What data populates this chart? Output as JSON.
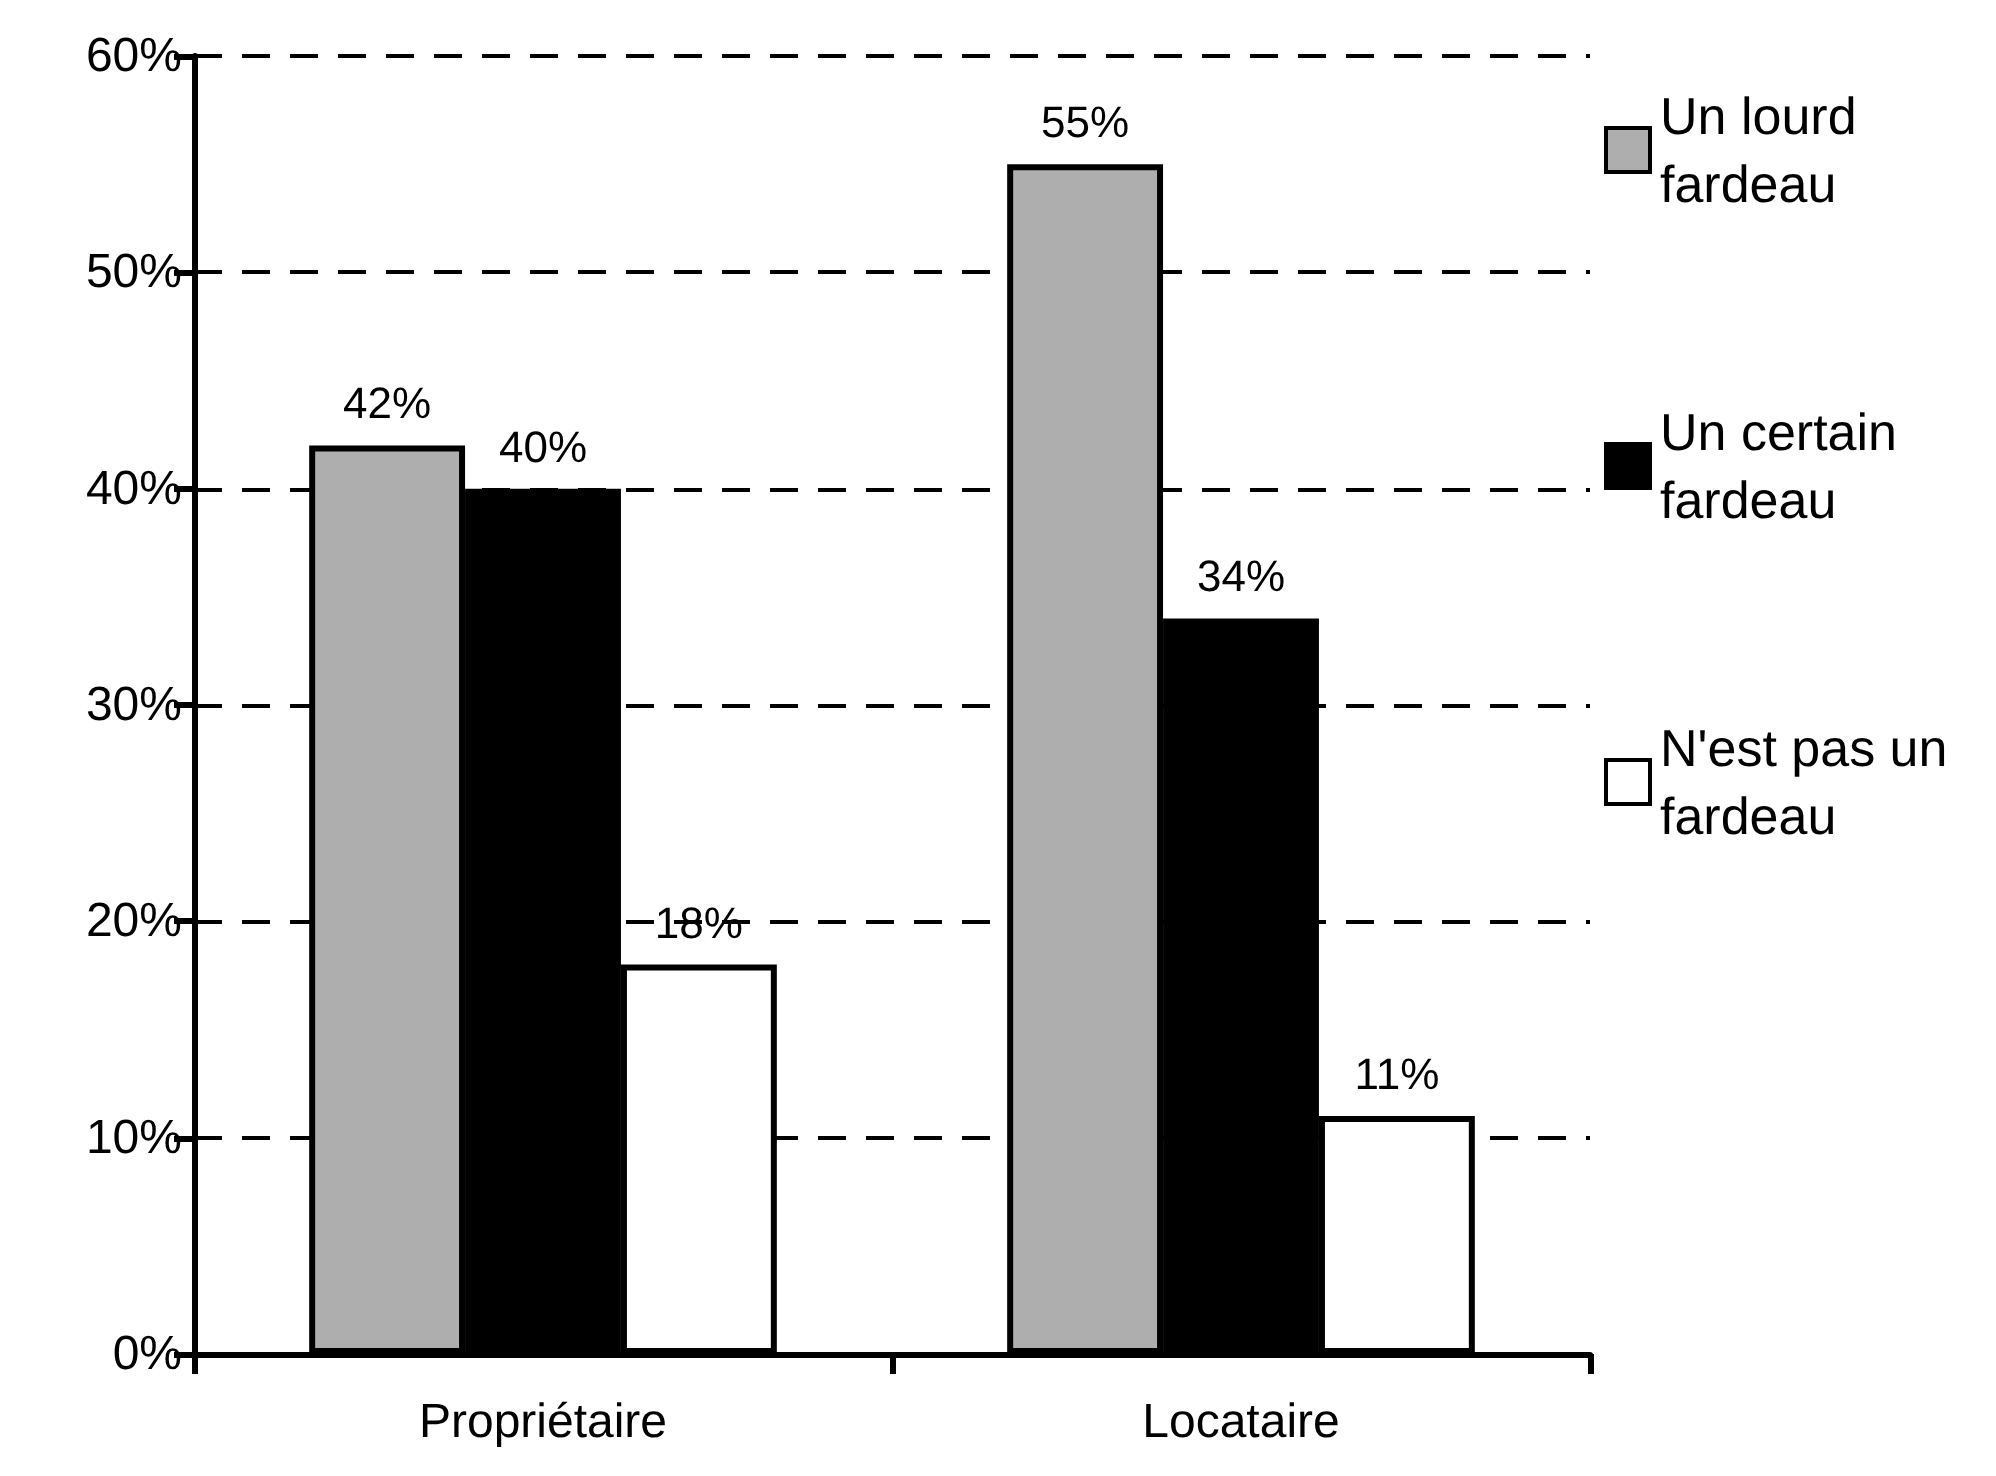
{
  "chart_data": {
    "type": "bar",
    "categories": [
      "Propriétaire",
      "Locataire"
    ],
    "series": [
      {
        "name": "Un lourd fardeau",
        "color": "#aeaeae",
        "values": [
          42,
          55
        ],
        "value_labels": [
          "42%",
          "55%"
        ]
      },
      {
        "name": "Un certain fardeau",
        "color": "#000000",
        "values": [
          40,
          34
        ],
        "value_labels": [
          "40%",
          "34%"
        ]
      },
      {
        "name": "N'est pas un fardeau",
        "color": "#ffffff",
        "values": [
          18,
          11
        ],
        "value_labels": [
          "18%",
          "11%"
        ]
      }
    ],
    "ylim": [
      0,
      60
    ],
    "yticks": [
      {
        "value": 0,
        "label": "0%"
      },
      {
        "value": 10,
        "label": "10%"
      },
      {
        "value": 20,
        "label": "20%"
      },
      {
        "value": 30,
        "label": "30%"
      },
      {
        "value": 40,
        "label": "40%"
      },
      {
        "value": 50,
        "label": "50%"
      },
      {
        "value": 60,
        "label": "60%"
      }
    ],
    "grid": "y",
    "legend": "top right"
  }
}
